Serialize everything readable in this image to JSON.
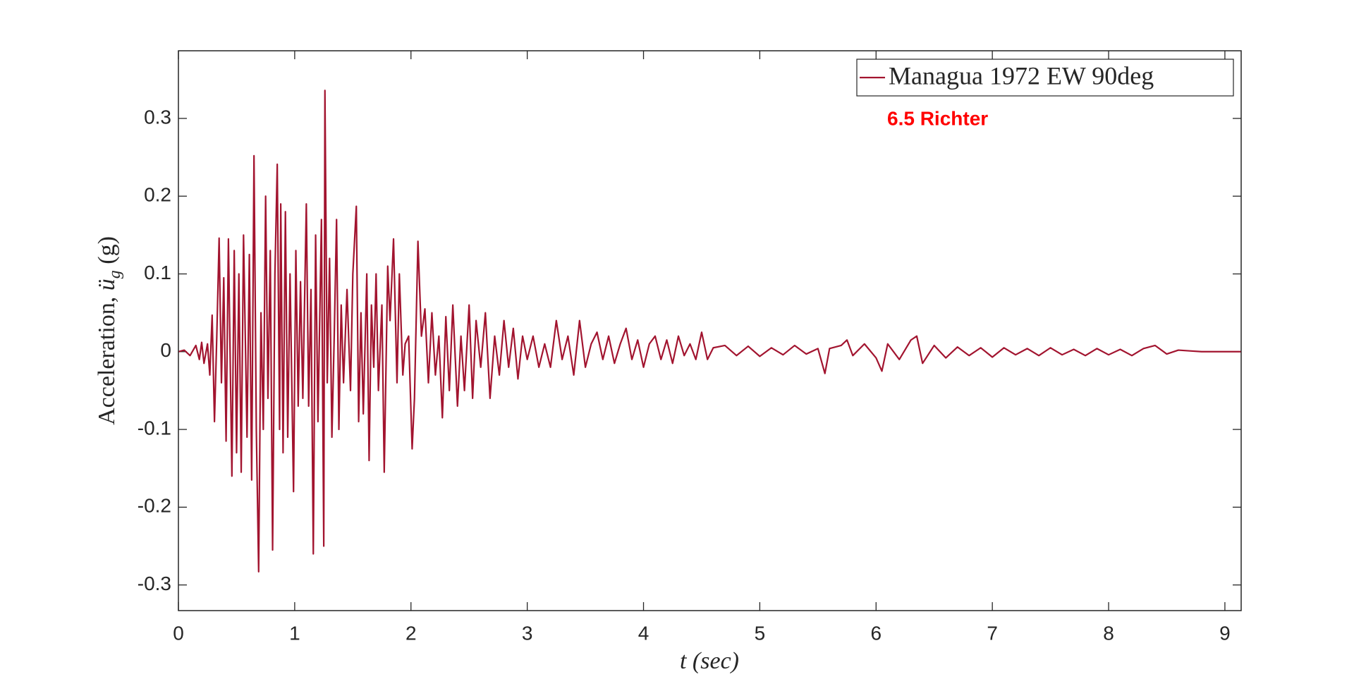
{
  "chart_data": {
    "type": "line",
    "xlabel": "t (sec)",
    "ylabel": {
      "text": "Acceleration, ",
      "symbol": "ü",
      "subscript": "g",
      "unit": " (g)"
    },
    "annotation": "6.5 Richter",
    "annotation_color": "#ff0000",
    "legend": "upper right",
    "grid": false,
    "xlim": [
      0,
      9.14
    ],
    "ylim": [
      -0.333,
      0.387
    ],
    "xticks": [
      0,
      1,
      2,
      3,
      4,
      5,
      6,
      7,
      8,
      9
    ],
    "yticks": [
      -0.3,
      -0.2,
      -0.1,
      0,
      0.1,
      0.2,
      0.3
    ],
    "x": [
      0,
      0.05,
      0.1,
      0.15,
      0.18,
      0.2,
      0.22,
      0.25,
      0.27,
      0.29,
      0.31,
      0.33,
      0.35,
      0.37,
      0.39,
      0.41,
      0.43,
      0.46,
      0.48,
      0.5,
      0.52,
      0.54,
      0.56,
      0.59,
      0.61,
      0.63,
      0.65,
      0.67,
      0.69,
      0.71,
      0.73,
      0.75,
      0.77,
      0.79,
      0.81,
      0.83,
      0.85,
      0.87,
      0.88,
      0.9,
      0.92,
      0.94,
      0.96,
      0.99,
      1.01,
      1.03,
      1.05,
      1.07,
      1.1,
      1.12,
      1.14,
      1.16,
      1.18,
      1.2,
      1.23,
      1.25,
      1.26,
      1.28,
      1.3,
      1.32,
      1.34,
      1.36,
      1.38,
      1.4,
      1.42,
      1.45,
      1.48,
      1.5,
      1.53,
      1.55,
      1.57,
      1.59,
      1.62,
      1.64,
      1.66,
      1.68,
      1.7,
      1.72,
      1.75,
      1.77,
      1.8,
      1.82,
      1.85,
      1.88,
      1.9,
      1.93,
      1.95,
      1.98,
      2.01,
      2.03,
      2.06,
      2.09,
      2.12,
      2.15,
      2.18,
      2.21,
      2.24,
      2.27,
      2.3,
      2.33,
      2.36,
      2.4,
      2.43,
      2.46,
      2.5,
      2.53,
      2.56,
      2.6,
      2.64,
      2.68,
      2.72,
      2.76,
      2.8,
      2.84,
      2.88,
      2.92,
      2.96,
      3.0,
      3.05,
      3.1,
      3.15,
      3.2,
      3.25,
      3.3,
      3.35,
      3.4,
      3.45,
      3.5,
      3.55,
      3.6,
      3.65,
      3.7,
      3.75,
      3.8,
      3.85,
      3.9,
      3.95,
      4.0,
      4.05,
      4.1,
      4.15,
      4.2,
      4.25,
      4.3,
      4.35,
      4.4,
      4.45,
      4.5,
      4.55,
      4.6,
      4.7,
      4.8,
      4.9,
      5.0,
      5.1,
      5.2,
      5.3,
      5.4,
      5.5,
      5.56,
      5.6,
      5.7,
      5.75,
      5.8,
      5.9,
      6.0,
      6.05,
      6.1,
      6.2,
      6.3,
      6.35,
      6.4,
      6.5,
      6.6,
      6.7,
      6.8,
      6.9,
      7.0,
      7.1,
      7.2,
      7.3,
      7.4,
      7.5,
      7.6,
      7.7,
      7.8,
      7.9,
      8.0,
      8.1,
      8.2,
      8.3,
      8.4,
      8.5,
      8.6,
      8.7,
      8.8,
      9.0,
      9.14
    ],
    "series": [
      {
        "name": "Managua 1972 EW 90deg",
        "color": "#a2142f",
        "values": [
          0,
          0.002,
          -0.005,
          0.008,
          -0.01,
          0.012,
          -0.015,
          0.01,
          -0.03,
          0.047,
          -0.09,
          0.02,
          0.146,
          -0.04,
          0.095,
          -0.115,
          0.145,
          -0.16,
          0.13,
          -0.13,
          0.1,
          -0.155,
          0.15,
          -0.11,
          0.125,
          -0.165,
          0.252,
          -0.1,
          -0.283,
          0.05,
          -0.1,
          0.2,
          -0.06,
          0.13,
          -0.255,
          0.1,
          0.241,
          -0.1,
          0.19,
          -0.13,
          0.18,
          -0.11,
          0.1,
          -0.18,
          0.13,
          -0.07,
          0.09,
          -0.06,
          0.19,
          -0.07,
          0.08,
          -0.26,
          0.15,
          -0.09,
          0.17,
          -0.25,
          0.336,
          -0.04,
          0.12,
          -0.11,
          0.02,
          0.17,
          -0.1,
          0.06,
          -0.04,
          0.08,
          -0.05,
          0.1,
          0.187,
          -0.09,
          0.05,
          -0.08,
          0.1,
          -0.14,
          0.06,
          -0.02,
          0.1,
          -0.05,
          0.06,
          -0.155,
          0.11,
          0.04,
          0.145,
          -0.04,
          0.1,
          -0.03,
          0.01,
          0.02,
          -0.125,
          -0.06,
          0.142,
          0.02,
          0.055,
          -0.04,
          0.05,
          -0.03,
          0.02,
          -0.085,
          0.045,
          -0.05,
          0.06,
          -0.07,
          0.02,
          -0.05,
          0.06,
          -0.06,
          0.04,
          -0.02,
          0.05,
          -0.06,
          0.02,
          -0.03,
          0.04,
          -0.02,
          0.03,
          -0.035,
          0.02,
          -0.01,
          0.02,
          -0.02,
          0.01,
          -0.02,
          0.04,
          -0.01,
          0.02,
          -0.03,
          0.04,
          -0.02,
          0.01,
          0.025,
          -0.01,
          0.02,
          -0.015,
          0.01,
          0.03,
          -0.01,
          0.015,
          -0.02,
          0.01,
          0.02,
          -0.01,
          0.015,
          -0.015,
          0.02,
          -0.005,
          0.01,
          -0.01,
          0.025,
          -0.01,
          0.005,
          0.008,
          -0.005,
          0.007,
          -0.006,
          0.005,
          -0.004,
          0.008,
          -0.003,
          0.004,
          -0.028,
          0.004,
          0.008,
          0.015,
          -0.005,
          0.01,
          -0.008,
          -0.025,
          0.01,
          -0.01,
          0.015,
          0.02,
          -0.015,
          0.008,
          -0.008,
          0.006,
          -0.005,
          0.005,
          -0.007,
          0.005,
          -0.004,
          0.004,
          -0.005,
          0.005,
          -0.004,
          0.003,
          -0.005,
          0.004,
          -0.004,
          0.003,
          -0.005,
          0.004,
          0.008,
          -0.003,
          0.002,
          0.001,
          0,
          0,
          0
        ]
      }
    ]
  }
}
